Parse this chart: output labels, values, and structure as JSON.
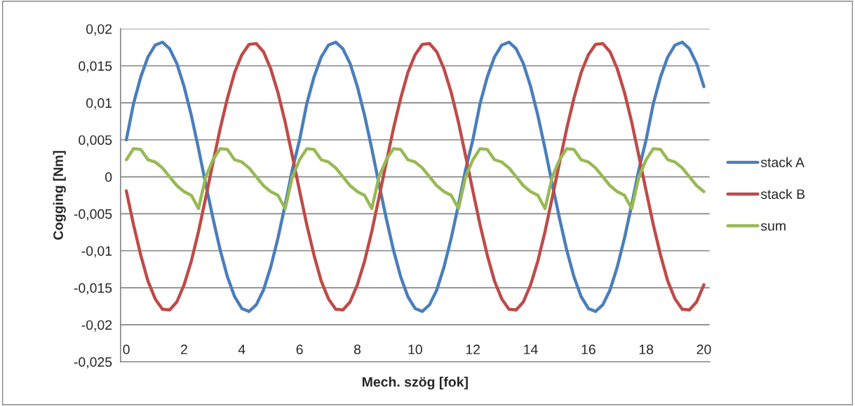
{
  "chart_data": {
    "type": "line",
    "xlabel": "Mech. szög [fok]",
    "ylabel": "Cogging [Nm]",
    "x": [
      0,
      0.25,
      0.5,
      0.75,
      1,
      1.25,
      1.5,
      1.75,
      2,
      2.25,
      2.5,
      2.75,
      3,
      3.25,
      3.5,
      3.75,
      4,
      4.25,
      4.5,
      4.75,
      5,
      5.25,
      5.5,
      5.75,
      6,
      6.25,
      6.5,
      6.75,
      7,
      7.25,
      7.5,
      7.75,
      8,
      8.25,
      8.5,
      8.75,
      9,
      9.25,
      9.5,
      9.75,
      10,
      10.25,
      10.5,
      10.75,
      11,
      11.25,
      11.5,
      11.75,
      12,
      12.25,
      12.5,
      12.75,
      13,
      13.25,
      13.5,
      13.75,
      14,
      14.25,
      14.5,
      14.75,
      15,
      15.25,
      15.5,
      15.75,
      16,
      16.25,
      16.5,
      16.75,
      17,
      17.25,
      17.5,
      17.75,
      18,
      18.25,
      18.5,
      18.75,
      19,
      19.25,
      19.5,
      19.75,
      20
    ],
    "series": [
      {
        "name": "stack A",
        "color": "#4a7ebb",
        "values": [
          0.005,
          0.0099,
          0.0135,
          0.0162,
          0.0178,
          0.0182,
          0.0173,
          0.0153,
          0.0122,
          0.0083,
          0.0038,
          -0.001,
          -0.0056,
          -0.0099,
          -0.0135,
          -0.0162,
          -0.0178,
          -0.0182,
          -0.0173,
          -0.0153,
          -0.0122,
          -0.0083,
          -0.0038,
          0.001,
          0.005,
          0.0099,
          0.0135,
          0.0162,
          0.0178,
          0.0182,
          0.0173,
          0.0153,
          0.0122,
          0.0083,
          0.0038,
          -0.001,
          -0.0056,
          -0.0099,
          -0.0135,
          -0.0162,
          -0.0178,
          -0.0182,
          -0.0173,
          -0.0153,
          -0.0122,
          -0.0083,
          -0.0038,
          0.001,
          0.005,
          0.0099,
          0.0135,
          0.0162,
          0.0178,
          0.0182,
          0.0173,
          0.0153,
          0.0122,
          0.0083,
          0.0038,
          -0.001,
          -0.0056,
          -0.0099,
          -0.0135,
          -0.0162,
          -0.0178,
          -0.0182,
          -0.0173,
          -0.0153,
          -0.0122,
          -0.0083,
          -0.0038,
          0.001,
          0.005,
          0.0099,
          0.0135,
          0.0162,
          0.0178,
          0.0182,
          0.0173,
          0.0153,
          0.0122
        ]
      },
      {
        "name": "stack B",
        "color": "#be4b48",
        "values": [
          -0.0019,
          -0.0065,
          -0.0106,
          -0.0141,
          -0.0165,
          -0.0179,
          -0.018,
          -0.0169,
          -0.0146,
          -0.0114,
          -0.0074,
          -0.0028,
          0.0019,
          0.0065,
          0.0106,
          0.0141,
          0.0165,
          0.0179,
          0.018,
          0.0169,
          0.0146,
          0.0114,
          0.0074,
          0.0028,
          -0.0019,
          -0.0065,
          -0.0106,
          -0.0141,
          -0.0165,
          -0.0179,
          -0.018,
          -0.0169,
          -0.0146,
          -0.0114,
          -0.0074,
          -0.0028,
          0.0019,
          0.0065,
          0.0106,
          0.0141,
          0.0165,
          0.0179,
          0.018,
          0.0169,
          0.0146,
          0.0114,
          0.0074,
          0.0028,
          -0.0019,
          -0.0065,
          -0.0106,
          -0.0141,
          -0.0165,
          -0.0179,
          -0.018,
          -0.0169,
          -0.0146,
          -0.0114,
          -0.0074,
          -0.0028,
          0.0019,
          0.0065,
          0.0106,
          0.0141,
          0.0165,
          0.0179,
          0.018,
          0.0169,
          0.0146,
          0.0114,
          0.0074,
          0.0028,
          -0.0019,
          -0.0065,
          -0.0106,
          -0.0141,
          -0.0165,
          -0.0179,
          -0.018,
          -0.0169,
          -0.0146
        ]
      },
      {
        "name": "sum",
        "color": "#98b954",
        "values": [
          0.0023,
          0.0038,
          0.0037,
          0.0023,
          0.002,
          0.0012,
          0.0,
          -0.0012,
          -0.002,
          -0.0025,
          -0.0043,
          0.0,
          0.0023,
          0.0038,
          0.0037,
          0.0023,
          0.002,
          0.0012,
          0.0,
          -0.0012,
          -0.002,
          -0.0025,
          -0.0043,
          0.0,
          0.0023,
          0.0038,
          0.0037,
          0.0023,
          0.002,
          0.0012,
          0.0,
          -0.0012,
          -0.002,
          -0.0025,
          -0.0043,
          0.0,
          0.0023,
          0.0038,
          0.0037,
          0.0023,
          0.002,
          0.0012,
          0.0,
          -0.0012,
          -0.002,
          -0.0025,
          -0.0043,
          0.0,
          0.0023,
          0.0038,
          0.0037,
          0.0023,
          0.002,
          0.0012,
          0.0,
          -0.0012,
          -0.002,
          -0.0025,
          -0.0043,
          0.0,
          0.0023,
          0.0038,
          0.0037,
          0.0023,
          0.002,
          0.0012,
          0.0,
          -0.0012,
          -0.002,
          -0.0025,
          -0.0043,
          0.0,
          0.0023,
          0.0038,
          0.0037,
          0.0023,
          0.002,
          0.0012,
          0.0,
          -0.0012,
          -0.002
        ]
      }
    ],
    "xlim": [
      -0.2,
      20.2
    ],
    "xticks": [
      0,
      2,
      4,
      6,
      8,
      10,
      12,
      14,
      16,
      18,
      20
    ],
    "ylim": [
      -0.025,
      0.02
    ],
    "yticks": [
      {
        "value": -0.025,
        "label": "-0,025"
      },
      {
        "value": -0.02,
        "label": "-0,02"
      },
      {
        "value": -0.015,
        "label": "-0,015"
      },
      {
        "value": -0.01,
        "label": "-0,01"
      },
      {
        "value": -0.005,
        "label": "-0,005"
      },
      {
        "value": 0,
        "label": "0"
      },
      {
        "value": 0.005,
        "label": "0,005"
      },
      {
        "value": 0.01,
        "label": "0,01"
      },
      {
        "value": 0.015,
        "label": "0,015"
      },
      {
        "value": 0.02,
        "label": "0,02"
      }
    ],
    "grid": "y",
    "legend": "right",
    "marker": "none",
    "line_style": "solid"
  }
}
